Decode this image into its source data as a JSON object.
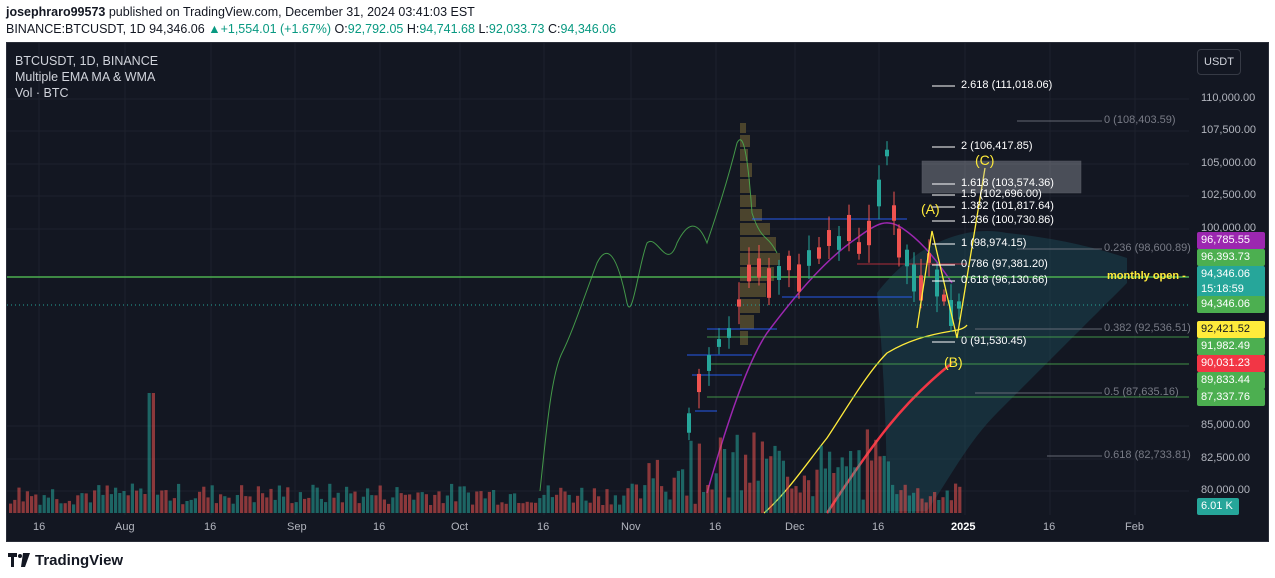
{
  "header": {
    "author": "josephraro99573",
    "published_text": " published on TradingView.com, December 31, 2024 03:41:03 EST",
    "symbol": "BINANCE:BTCUSDT, 1D",
    "last": "94,346.06",
    "change_arrow": "▲",
    "change": "+1,554.01 (+1.67%)",
    "o_label": "O:",
    "o": "92,792.05",
    "h_label": "H:",
    "h": "94,741.68",
    "l_label": "L:",
    "l": "92,033.73",
    "c_label": "C:",
    "c": "94,346.06"
  },
  "legend": {
    "title": "BTCUSDT, 1D, BINANCE",
    "indicator1": "Multiple EMA MA & WMA",
    "indicator2": "Vol · BTC"
  },
  "currency_button": "USDT",
  "price_axis": {
    "ticks": [
      "110,000.00",
      "107,500.00",
      "105,000.00",
      "102,500.00",
      "100,000.00",
      "85,000.00",
      "82,500.00",
      "80,000.00"
    ],
    "labels": [
      {
        "text": "96,785.55",
        "bg": "#9c27b0",
        "fg": "#ffffff"
      },
      {
        "text": "96,393.73",
        "bg": "#4caf50",
        "fg": "#ffffff"
      },
      {
        "text": "94,346.06",
        "bg": "#26a69a",
        "fg": "#ffffff"
      },
      {
        "text": "15:18:59",
        "bg": "#26a69a",
        "fg": "#ffffff"
      },
      {
        "text": "94,346.06",
        "bg": "#4caf50",
        "fg": "#ffffff"
      },
      {
        "text": "92,421.52",
        "bg": "#ffeb3b",
        "fg": "#131722"
      },
      {
        "text": "91,982.49",
        "bg": "#4caf50",
        "fg": "#ffffff"
      },
      {
        "text": "90,031.23",
        "bg": "#f23645",
        "fg": "#ffffff"
      },
      {
        "text": "89,833.44",
        "bg": "#4caf50",
        "fg": "#ffffff"
      },
      {
        "text": "87,337.76",
        "bg": "#4caf50",
        "fg": "#ffffff"
      },
      {
        "text": "6.01 K",
        "bg": "#26a69a",
        "fg": "#ffffff"
      }
    ]
  },
  "time_axis": [
    "16",
    "Aug",
    "16",
    "Sep",
    "16",
    "Oct",
    "16",
    "Nov",
    "16",
    "Dec",
    "16",
    "2025",
    "16",
    "Feb"
  ],
  "annotations": {
    "monthly_open": "monthly open",
    "wave_a": "(A)",
    "wave_b": "(B)",
    "wave_c": "(C)"
  },
  "fib_extension": [
    "2.618 (111,018.06)",
    "2 (106,417.85)",
    "1.618 (103,574.36)",
    "1.5 (102,696.00)",
    "1.382 (101,817.64)",
    "1.236 (100,730.86)",
    "1 (98,974.15)",
    "0.786 (97,381.20)",
    "0.618 (96,130.66)",
    "0 (91,530.45)"
  ],
  "fib_retracement": [
    "0 (108,403.59)",
    "0.236 (98,600.89)",
    "0.382 (92,536.51)",
    "0.5 (87,635.16)",
    "0.618 (82,733.81)"
  ],
  "footer": {
    "brand": "TradingView"
  },
  "colors": {
    "background": "#131722",
    "up": "#26a69a",
    "down": "#ef5350",
    "ema_yellow": "#ffeb3b",
    "wma_red": "#f23645",
    "ma_purple": "#9c27b0",
    "line_green": "#4caf50"
  },
  "chart_data": {
    "type": "candlestick",
    "ylim": [
      79000,
      112500
    ]
  }
}
